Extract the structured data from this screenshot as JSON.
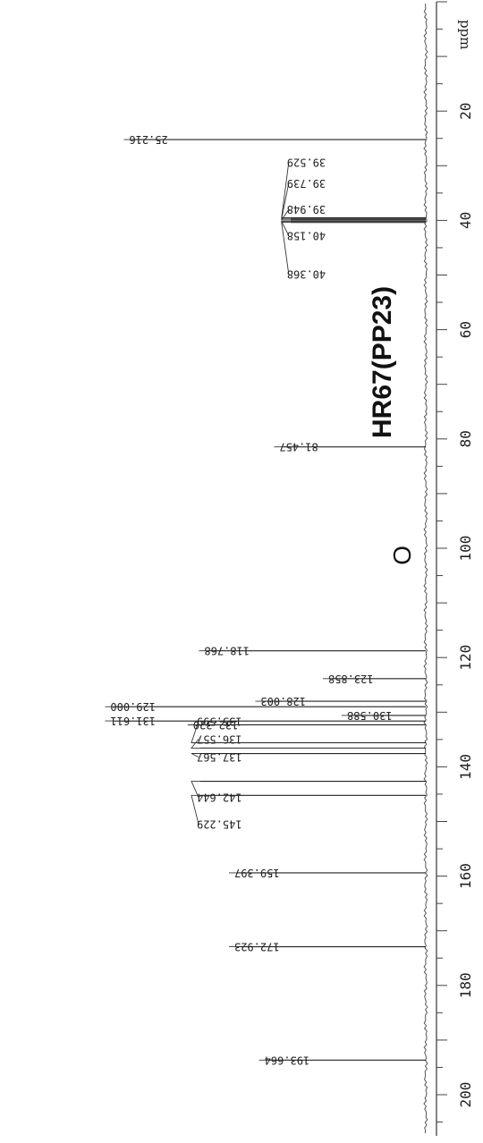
{
  "chart_data": {
    "type": "line",
    "title": "HR67(PP23)",
    "fragment_text": "O",
    "xlabel": "ppm",
    "xlim": [
      205,
      0
    ],
    "ticks": [
      20,
      40,
      60,
      80,
      100,
      120,
      140,
      160,
      180,
      200
    ],
    "tick_labels": [
      "20",
      "40",
      "60",
      "80",
      "100",
      "120",
      "140",
      "160",
      "180",
      "200"
    ],
    "peaks": [
      {
        "x": 25.216,
        "label": "25.216",
        "intensity": 0.78
      },
      {
        "x": 39.529,
        "label": "39.529",
        "intensity": 0.36
      },
      {
        "x": 39.739,
        "label": "39.739",
        "intensity": 0.36
      },
      {
        "x": 39.948,
        "label": "39.948",
        "intensity": 0.36
      },
      {
        "x": 40.158,
        "label": "40.158",
        "intensity": 0.36
      },
      {
        "x": 40.368,
        "label": "40.368",
        "intensity": 0.36
      },
      {
        "x": 81.457,
        "label": "81.457",
        "intensity": 0.38
      },
      {
        "x": 118.768,
        "label": "118.768",
        "intensity": 0.58
      },
      {
        "x": 123.858,
        "label": "123.858",
        "intensity": 0.25
      },
      {
        "x": 128.003,
        "label": "128.003",
        "intensity": 0.43
      },
      {
        "x": 129.0,
        "label": "129.000",
        "intensity": 0.83
      },
      {
        "x": 130.588,
        "label": "130.588",
        "intensity": 0.2
      },
      {
        "x": 131.611,
        "label": "131.611",
        "intensity": 0.83
      },
      {
        "x": 132.32,
        "label": "132.320",
        "intensity": 0.61
      },
      {
        "x": 135.599,
        "label": "135.599",
        "intensity": 0.6
      },
      {
        "x": 136.557,
        "label": "136.557",
        "intensity": 0.6
      },
      {
        "x": 137.567,
        "label": "137.567",
        "intensity": 0.6
      },
      {
        "x": 142.644,
        "label": "142.644",
        "intensity": 0.6
      },
      {
        "x": 145.229,
        "label": "145.229",
        "intensity": 0.6
      },
      {
        "x": 159.397,
        "label": "159.397",
        "intensity": 0.5
      },
      {
        "x": 172.923,
        "label": "172.923",
        "intensity": 0.5
      },
      {
        "x": 193.664,
        "label": "193.664",
        "intensity": 0.42
      }
    ],
    "grid": false
  }
}
